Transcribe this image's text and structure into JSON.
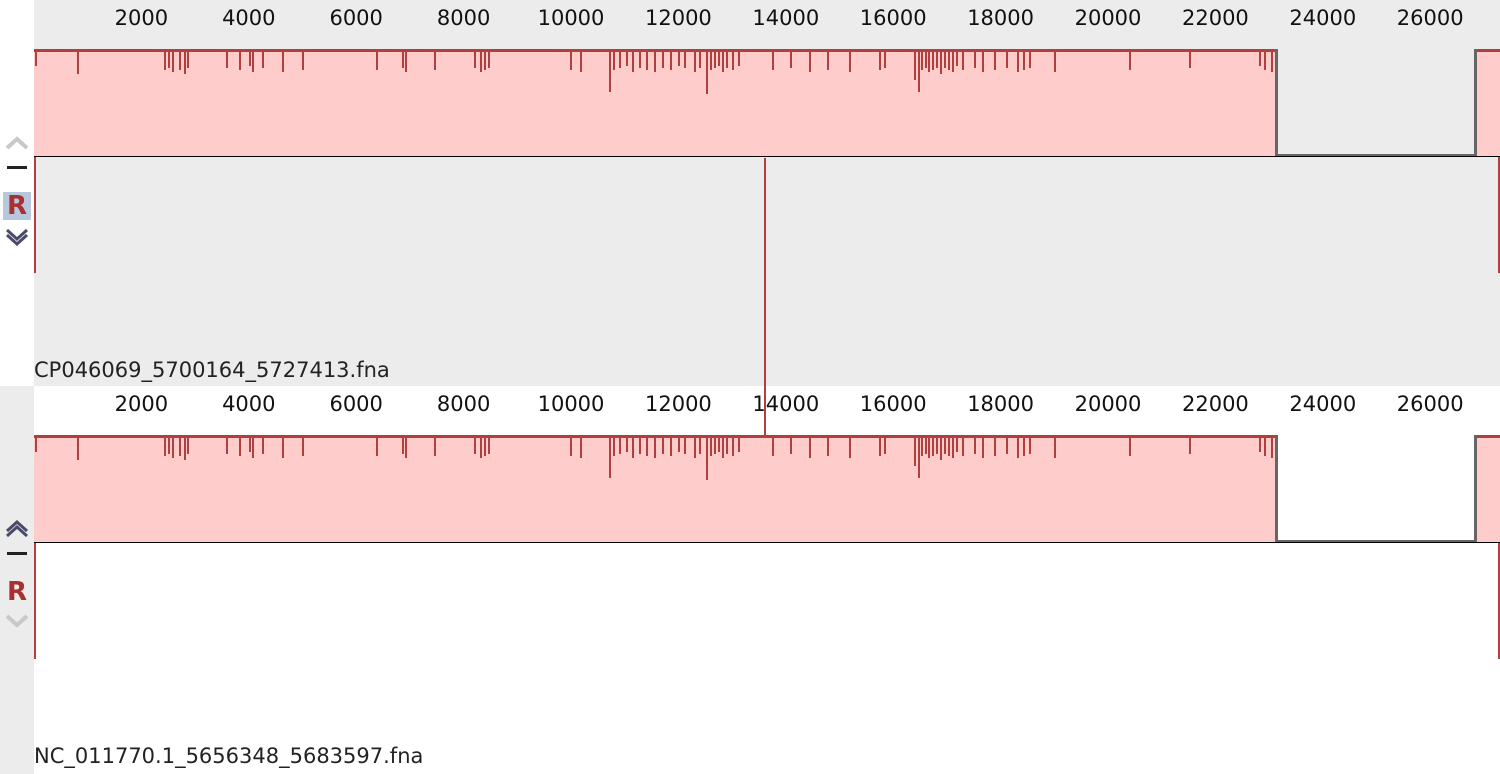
{
  "ruler": {
    "ticks": [
      2000,
      4000,
      6000,
      8000,
      10000,
      12000,
      14000,
      16000,
      18000,
      20000,
      22000,
      24000,
      26000
    ],
    "sequence_length": 27250
  },
  "genomes": [
    {
      "name": "CP046069_5700164_5727413.fna",
      "lcb_color": "#ffcccc",
      "lcb_border_color": "#b04040"
    },
    {
      "name": "NC_011770.1_5656348_5683597.fna",
      "lcb_color": "#ffcccc",
      "lcb_border_color": "#b04040"
    }
  ],
  "controls": {
    "reference_label": "R",
    "icons": [
      "chevron-up-icon",
      "minus-icon",
      "chevron-down-icon"
    ]
  },
  "colors": {
    "accent": "#b04040",
    "track_bg_top": "#ececec",
    "track_bg_bottom": "#ffffff",
    "gap_outline": "#666666"
  }
}
